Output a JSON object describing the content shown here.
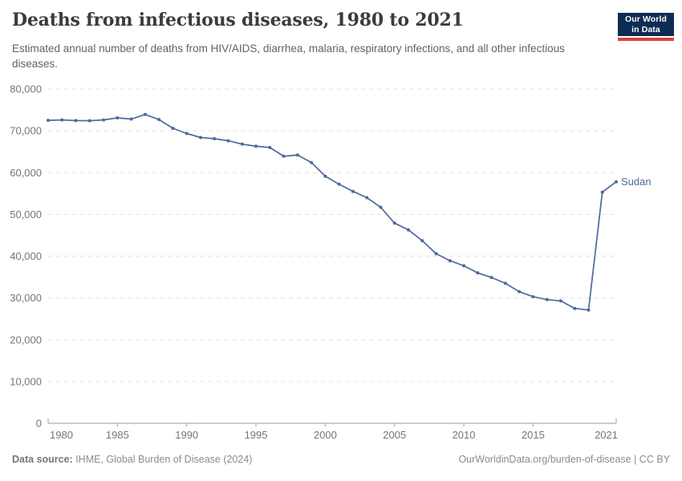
{
  "header": {
    "title": "Deaths from infectious diseases, 1980 to 2021",
    "subtitle": "Estimated annual number of deaths from HIV/AIDS, diarrhea, malaria, respiratory infections, and all other infectious diseases.",
    "logo": {
      "line1": "Our World",
      "line2": "in Data",
      "bg_color": "#0d2c54",
      "accent_color": "#dc3f3f"
    }
  },
  "chart_data": {
    "type": "line",
    "title": "Deaths from infectious diseases, 1980 to 2021",
    "entity_label": "Sudan",
    "x_range": [
      1980,
      2021
    ],
    "ylim": [
      0,
      80000
    ],
    "yticks": [
      0,
      10000,
      20000,
      30000,
      40000,
      50000,
      60000,
      70000,
      80000
    ],
    "xticks": [
      1980,
      1985,
      1990,
      1995,
      2000,
      2005,
      2010,
      2015,
      2021
    ],
    "grid": "dashed-horizontal",
    "legend_position": "end-of-line",
    "line_color": "#4c6a9c",
    "axis_color": "#9e9e9e",
    "grid_color": "#e2e2e2",
    "tick_label_color": "#757575",
    "series": [
      {
        "name": "Sudan",
        "x": [
          1980,
          1981,
          1982,
          1983,
          1984,
          1985,
          1986,
          1987,
          1988,
          1989,
          1990,
          1991,
          1992,
          1993,
          1994,
          1995,
          1996,
          1997,
          1998,
          1999,
          2000,
          2001,
          2002,
          2003,
          2004,
          2005,
          2006,
          2007,
          2008,
          2009,
          2010,
          2011,
          2012,
          2013,
          2014,
          2015,
          2016,
          2017,
          2018,
          2019,
          2020,
          2021
        ],
        "values": [
          72500,
          72600,
          72450,
          72400,
          72600,
          73100,
          72800,
          73900,
          72700,
          70600,
          69350,
          68400,
          68100,
          67600,
          66800,
          66300,
          66000,
          63900,
          64200,
          62400,
          59100,
          57200,
          55500,
          54000,
          51700,
          47900,
          46300,
          43700,
          40600,
          38900,
          37700,
          36000,
          34900,
          33500,
          31500,
          30300,
          29600,
          29300,
          27500,
          27100,
          55300,
          57800
        ]
      }
    ]
  },
  "footer": {
    "source_label": "Data source:",
    "source_text": " IHME, Global Burden of Disease (2024)",
    "link_text": "OurWorldinData.org/burden-of-disease",
    "license_text": " | CC BY"
  }
}
